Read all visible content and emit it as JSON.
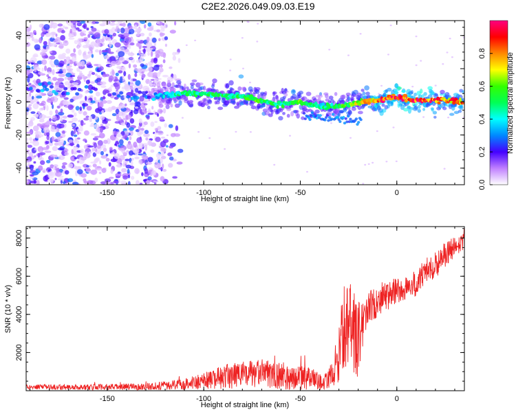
{
  "title": "C2E2.2026.049.09.03.E19",
  "colors": {
    "series": "#ee2222",
    "axes": "#000000"
  },
  "chart_data": [
    {
      "type": "heatmap",
      "name": "spectrogram",
      "title": "C2E2.2026.049.09.03.E19",
      "xlabel": "Height of straight line (km)",
      "ylabel": "Frequency (Hz)",
      "xlim": [
        -192,
        35
      ],
      "ylim": [
        -50,
        49
      ],
      "xticks": [
        -150,
        -100,
        -50,
        0
      ],
      "yticks": [
        -40,
        -20,
        0,
        20,
        40
      ],
      "colorbar": {
        "label": "Normalized spectral amplitude",
        "range": [
          0,
          1
        ],
        "ticks": [
          0,
          0.2,
          0.4,
          0.6,
          0.8
        ],
        "ticklabels": [
          "0.0",
          "0.2",
          "0.4",
          "0.6",
          "0.8"
        ],
        "colormap": "hsv-rainbow (white-violet-blue-cyan-green-yellow-red-magenta)"
      },
      "ridge": {
        "x": [
          -192,
          -180,
          -170,
          -150,
          -135,
          -120,
          -110,
          -100,
          -90,
          -80,
          -70,
          -60,
          -50,
          -40,
          -30,
          -20,
          -10,
          0,
          10,
          20,
          35
        ],
        "freq": [
          8,
          8,
          7,
          6,
          3,
          4,
          5,
          5,
          4,
          3,
          1,
          -2,
          0,
          -3,
          -3,
          0,
          1,
          3,
          1,
          1,
          0
        ],
        "amplitude": [
          0.25,
          0.4,
          0.3,
          0.2,
          0.3,
          0.4,
          0.5,
          0.5,
          0.55,
          0.55,
          0.6,
          0.5,
          0.6,
          0.45,
          0.55,
          0.7,
          0.9,
          0.95,
          0.95,
          0.9,
          0.85
        ]
      },
      "noise_region": [
        -192,
        -120
      ]
    },
    {
      "type": "line",
      "name": "snr",
      "xlabel": "Height of straight line (km)",
      "ylabel": "SNR (10 * v/v)",
      "xlim": [
        -192,
        35
      ],
      "ylim": [
        0,
        8600
      ],
      "xticks": [
        -150,
        -100,
        -50,
        0
      ],
      "yticks": [
        2000,
        4000,
        6000,
        8000
      ],
      "envelope": {
        "x": [
          -192,
          -160,
          -130,
          -115,
          -100,
          -85,
          -70,
          -55,
          -45,
          -38,
          -33,
          -30,
          -27,
          -25,
          -22,
          -20,
          -15,
          -10,
          -5,
          0,
          5,
          10,
          15,
          20,
          25,
          30,
          35
        ],
        "mean": [
          200,
          180,
          220,
          300,
          500,
          800,
          900,
          700,
          650,
          400,
          900,
          2000,
          3500,
          3300,
          3000,
          2700,
          4300,
          4700,
          5000,
          5200,
          5400,
          5600,
          6300,
          6600,
          7100,
          7500,
          7800
        ],
        "spread": [
          120,
          150,
          180,
          250,
          450,
          700,
          750,
          650,
          600,
          350,
          700,
          1600,
          2200,
          2300,
          2200,
          2000,
          900,
          900,
          800,
          700,
          700,
          700,
          700,
          700,
          700,
          600,
          600
        ]
      }
    }
  ]
}
